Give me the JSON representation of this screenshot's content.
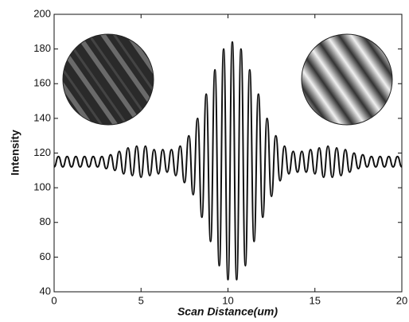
{
  "chart_data": {
    "type": "line",
    "xlabel": "Scan Distance(um)",
    "ylabel": "Intensity",
    "x": [
      0,
      0.25,
      0.5,
      0.75,
      1,
      1.25,
      1.5,
      1.75,
      2,
      2.25,
      2.5,
      2.75,
      3,
      3.25,
      3.5,
      3.75,
      4,
      4.25,
      4.5,
      4.75,
      5,
      5.25,
      5.5,
      5.75,
      6,
      6.25,
      6.5,
      6.75,
      7,
      7.25,
      7.5,
      7.75,
      8,
      8.25,
      8.5,
      8.75,
      9,
      9.25,
      9.5,
      9.75,
      10,
      10.25,
      10.5,
      10.75,
      11,
      11.25,
      11.5,
      11.75,
      12,
      12.25,
      12.5,
      12.75,
      13,
      13.25,
      13.5,
      13.75,
      14,
      14.25,
      14.5,
      14.75,
      15,
      15.25,
      15.5,
      15.75,
      16,
      16.25,
      16.5,
      16.75,
      17,
      17.25,
      17.5,
      17.75,
      18,
      18.25,
      18.5,
      18.75,
      19,
      19.25,
      19.5,
      19.75,
      20
    ],
    "series": [
      {
        "color": "#111111",
        "values": [
          112,
          118,
          112,
          118,
          112,
          118,
          112,
          118,
          112,
          118,
          112,
          118,
          111,
          119,
          110,
          121,
          108,
          123,
          107,
          124,
          106,
          124,
          107,
          122,
          108,
          122,
          109,
          122,
          107,
          124,
          103,
          130,
          96,
          140,
          83,
          154,
          69,
          168,
          55,
          180,
          47,
          184,
          47,
          180,
          55,
          168,
          69,
          154,
          83,
          140,
          95,
          130,
          104,
          124,
          108,
          121,
          109,
          121,
          109,
          122,
          108,
          123,
          106,
          124,
          106,
          123,
          107,
          122,
          109,
          120,
          111,
          119,
          112,
          118,
          112,
          118,
          112,
          118,
          112,
          118,
          112
        ]
      }
    ],
    "xlim": [
      0,
      20
    ],
    "xticks": [
      0,
      5,
      10,
      15,
      20
    ],
    "ylim": [
      40,
      200
    ],
    "yticks": [
      40,
      60,
      80,
      100,
      120,
      140,
      160,
      180,
      200
    ]
  }
}
